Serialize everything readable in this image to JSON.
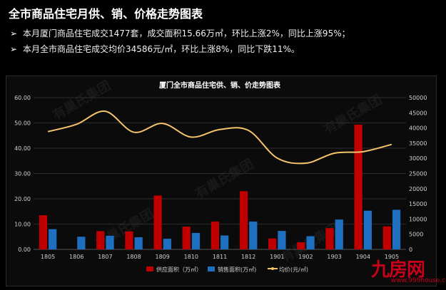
{
  "header": {
    "title": "全市商品住宅月供、销、价格走势图表",
    "bullets": [
      "本月厦门商品住宅成交1477套，成交面积15.66万㎡，环比上涨2%，同比上涨95%；",
      "本月全市商品住宅成交均价34586元/㎡，环比上涨8%，同比下跌11%。"
    ],
    "bullet_marker": "➢"
  },
  "watermark": {
    "text": "有巢氏集团"
  },
  "logo": {
    "name": "九房网",
    "url": "www.999house.com"
  },
  "colors": {
    "supply": "#c00000",
    "sales": "#1f6fc0",
    "price": "#f5c46a",
    "grid": "#2c2c2c",
    "axis_text": "#d0d0d0"
  },
  "chart_data": {
    "type": "bar",
    "title": "厦门全市商品住宅供、销、价走势图表",
    "categories": [
      "1805",
      "1806",
      "1807",
      "1808",
      "1809",
      "1810",
      "1811",
      "1812",
      "1901",
      "1902",
      "1903",
      "1904",
      "1905"
    ],
    "series": [
      {
        "name": "供应面积（万㎡）",
        "type": "bar",
        "axis": "left",
        "values": [
          13.5,
          0,
          7.2,
          7.1,
          21.3,
          9.0,
          11.0,
          23.0,
          4.3,
          2.8,
          8.4,
          49.3,
          9.1
        ]
      },
      {
        "name": "销售面积(万㎡)",
        "type": "bar",
        "axis": "left",
        "values": [
          8.0,
          5.0,
          5.4,
          4.8,
          4.2,
          6.5,
          5.5,
          11.0,
          7.3,
          5.2,
          11.8,
          15.3,
          15.66
        ]
      },
      {
        "name": "均价(元/㎡)",
        "type": "line",
        "axis": "right",
        "values": [
          38800,
          41200,
          45500,
          38600,
          41500,
          37000,
          39500,
          39200,
          30100,
          28400,
          31700,
          32200,
          34586
        ]
      }
    ],
    "left_axis": {
      "min": 0,
      "max": 60,
      "ticks": [
        "0.00",
        "10.00",
        "20.00",
        "30.00",
        "40.00",
        "50.00",
        "60.00"
      ]
    },
    "right_axis": {
      "min": 0,
      "max": 50000,
      "ticks": [
        "0",
        "5000",
        "10000",
        "15000",
        "20000",
        "25000",
        "30000",
        "35000",
        "40000",
        "45000",
        "50000"
      ]
    },
    "grid": true,
    "legend_position": "bottom"
  }
}
